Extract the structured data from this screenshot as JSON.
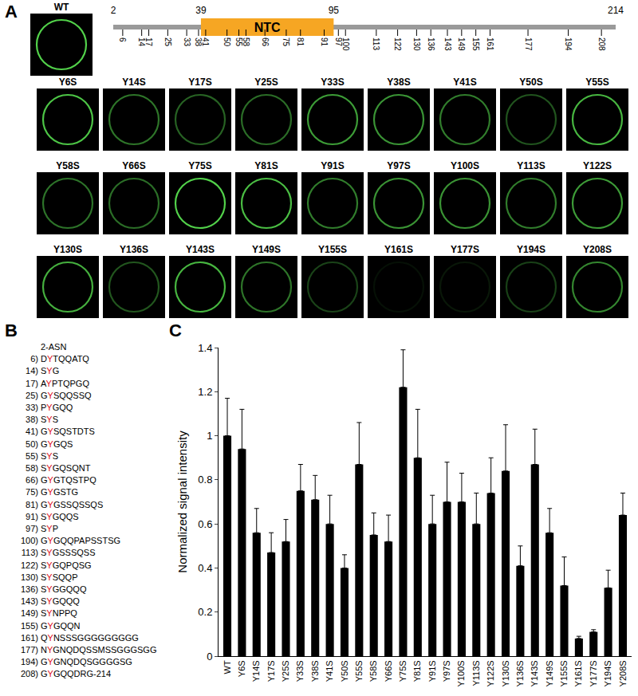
{
  "panel_a": {
    "label": "A",
    "wt_image": "WT",
    "domain": {
      "start": 2,
      "end": 214,
      "region": {
        "label": "NTC",
        "start": 39,
        "end": 95
      },
      "tyrosine_positions": [
        6,
        14,
        17,
        25,
        33,
        38,
        41,
        50,
        55,
        58,
        66,
        75,
        81,
        91,
        97,
        100,
        113,
        122,
        130,
        136,
        143,
        149,
        155,
        161,
        177,
        194,
        208
      ]
    },
    "images": [
      "Y6S",
      "Y14S",
      "Y17S",
      "Y25S",
      "Y33S",
      "Y38S",
      "Y41S",
      "Y50S",
      "Y55S",
      "Y58S",
      "Y66S",
      "Y75S",
      "Y81S",
      "Y91S",
      "Y97S",
      "Y100S",
      "Y113S",
      "Y122S",
      "Y130S",
      "Y136S",
      "Y143S",
      "Y149S",
      "Y155S",
      "Y161S",
      "Y177S",
      "Y194S",
      "Y208S"
    ]
  },
  "panel_b": {
    "label": "B",
    "header": "2-ASN",
    "lines": [
      {
        "number": "6)",
        "pre": "D",
        "residue": "Y",
        "post": "TQQATQ"
      },
      {
        "number": "14)",
        "pre": "S",
        "residue": "Y",
        "post": "G"
      },
      {
        "number": "17)",
        "pre": "A",
        "residue": "Y",
        "post": "PTQPGQ"
      },
      {
        "number": "25)",
        "pre": "G",
        "residue": "Y",
        "post": "SQQSSQ"
      },
      {
        "number": "33)",
        "pre": "P",
        "residue": "Y",
        "post": "GQQ"
      },
      {
        "number": "38)",
        "pre": "S",
        "residue": "Y",
        "post": "S"
      },
      {
        "number": "41)",
        "pre": "G",
        "residue": "Y",
        "post": "SQSTDTS"
      },
      {
        "number": "50)",
        "pre": "G",
        "residue": "Y",
        "post": "GQS"
      },
      {
        "number": "55)",
        "pre": "S",
        "residue": "Y",
        "post": "S"
      },
      {
        "number": "58)",
        "pre": "S",
        "residue": "Y",
        "post": "GQSQNT"
      },
      {
        "number": "66)",
        "pre": "G",
        "residue": "Y",
        "post": "GTQSTPQ"
      },
      {
        "number": "75)",
        "pre": "G",
        "residue": "Y",
        "post": "GSTG"
      },
      {
        "number": "81)",
        "pre": "G",
        "residue": "Y",
        "post": "GSSQSSQS"
      },
      {
        "number": "91)",
        "pre": "S",
        "residue": "Y",
        "post": "GQQS"
      },
      {
        "number": "97)",
        "pre": "S",
        "residue": "Y",
        "post": "P"
      },
      {
        "number": "100)",
        "pre": "G",
        "residue": "Y",
        "post": "GQQPAPSSTSG"
      },
      {
        "number": "113)",
        "pre": "S",
        "residue": "Y",
        "post": "GSSSQSS"
      },
      {
        "number": "122)",
        "pre": "S",
        "residue": "Y",
        "post": "GQPQSG"
      },
      {
        "number": "130)",
        "pre": "S",
        "residue": "Y",
        "post": "SQQP"
      },
      {
        "number": "136)",
        "pre": "S",
        "residue": "Y",
        "post": "GGQQQ"
      },
      {
        "number": "143)",
        "pre": "S",
        "residue": "Y",
        "post": "GQQQ"
      },
      {
        "number": "149)",
        "pre": "S",
        "residue": "Y",
        "post": "NPPQ"
      },
      {
        "number": "155)",
        "pre": "G",
        "residue": "Y",
        "post": "GQQN"
      },
      {
        "number": "161)",
        "pre": "Q",
        "residue": "Y",
        "post": "NSSSGGGGGGGGG"
      },
      {
        "number": "177)",
        "pre": "N",
        "residue": "Y",
        "post": "GNQDQSSMSSGGGSGG"
      },
      {
        "number": "194)",
        "pre": "G",
        "residue": "Y",
        "post": "GNQDQSGGGGSG"
      },
      {
        "number": "208)",
        "pre": "G",
        "residue": "Y",
        "post": "GQQDRG-214"
      }
    ]
  },
  "panel_c": {
    "label": "C"
  },
  "chart_data": {
    "type": "bar",
    "categories": [
      "WT",
      "Y6S",
      "Y14S",
      "Y17S",
      "Y25S",
      "Y33S",
      "Y38S",
      "Y41S",
      "Y50S",
      "Y55S",
      "Y58S",
      "Y66S",
      "Y75S",
      "Y81S",
      "Y91S",
      "Y97S",
      "Y100S",
      "Y113S",
      "Y122S",
      "Y130S",
      "Y136S",
      "Y143S",
      "Y149S",
      "Y155S",
      "Y161S",
      "Y177S",
      "Y194S",
      "Y208S"
    ],
    "values": [
      1.0,
      0.94,
      0.56,
      0.47,
      0.52,
      0.75,
      0.71,
      0.6,
      0.4,
      0.87,
      0.55,
      0.52,
      1.22,
      0.9,
      0.6,
      0.7,
      0.7,
      0.6,
      0.74,
      0.84,
      0.41,
      0.87,
      0.56,
      0.32,
      0.08,
      0.11,
      0.31,
      0.64
    ],
    "errors": [
      0.17,
      0.18,
      0.11,
      0.09,
      0.1,
      0.12,
      0.11,
      0.13,
      0.06,
      0.19,
      0.1,
      0.12,
      0.17,
      0.22,
      0.13,
      0.18,
      0.13,
      0.14,
      0.16,
      0.21,
      0.09,
      0.16,
      0.11,
      0.13,
      0.01,
      0.01,
      0.08,
      0.1
    ],
    "color": "#000000",
    "y_label": "Normalized signal intensity",
    "ylim": [
      0,
      1.4
    ],
    "yticks": [
      0,
      0.2,
      0.4,
      0.6,
      0.8,
      1,
      1.2,
      1.4
    ],
    "grid": false
  }
}
